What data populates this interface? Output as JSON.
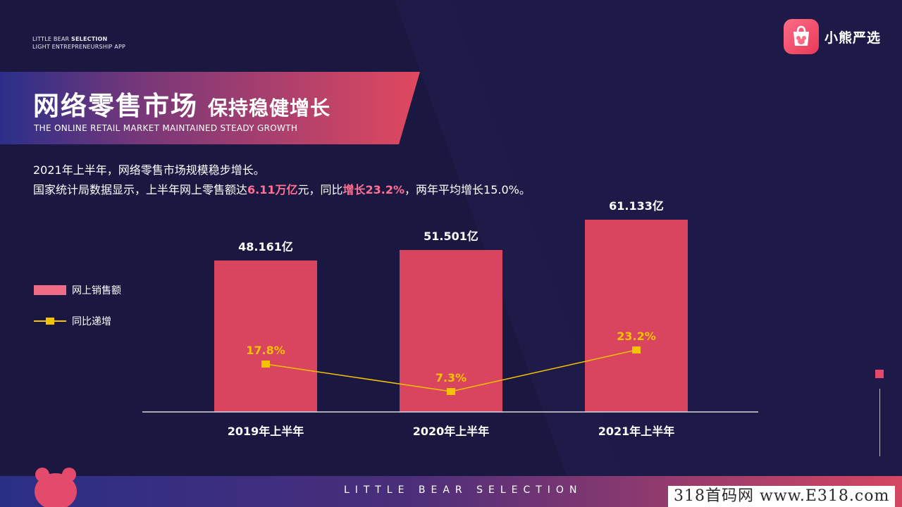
{
  "brand": {
    "line1_a": "LITTLE BEAR ",
    "line1_b": "SELECTION",
    "line2": "LIGHT ENTREPRENEURSHIP APP",
    "logo_text": "小熊严选"
  },
  "banner": {
    "title": "网络零售市场",
    "subtitle": "保持稳健增长",
    "english": "THE ONLINE RETAIL MARKET MAINTAINED STEADY GROWTH"
  },
  "description": {
    "line1": "2021年上半年，网络零售市场规模稳步增长。",
    "line2_a": "国家统计局数据显示，上半年网上零售额达",
    "line2_b": "6.11万亿",
    "line2_c": "元，同比",
    "line2_d": "增长23.2%",
    "line2_e": "，两年平均增长15.0%。"
  },
  "legend": {
    "bar_label": "网上销售额",
    "line_label": "同比递增"
  },
  "chart_data": {
    "type": "bar",
    "categories": [
      "2019年上半年",
      "2020年上半年",
      "2021年上半年"
    ],
    "series": [
      {
        "name": "网上销售额",
        "type": "bar",
        "values": [
          48.161,
          51.501,
          61.133
        ],
        "labels": [
          "48.161亿",
          "51.501亿",
          "61.133亿"
        ],
        "color": "#d9445f"
      },
      {
        "name": "同比递增",
        "type": "line",
        "values": [
          17.8,
          7.3,
          23.2
        ],
        "labels": [
          "17.8%",
          "7.3%",
          "23.2%"
        ],
        "color": "#f5c400"
      }
    ],
    "legend": "left"
  },
  "footer": {
    "text": "LITTLE BEAR SELECTION",
    "watermark": "318首码网 www.E318.com"
  },
  "colors": {
    "background": "#1a1840",
    "accent": "#e34a6b",
    "line": "#f5c400"
  }
}
